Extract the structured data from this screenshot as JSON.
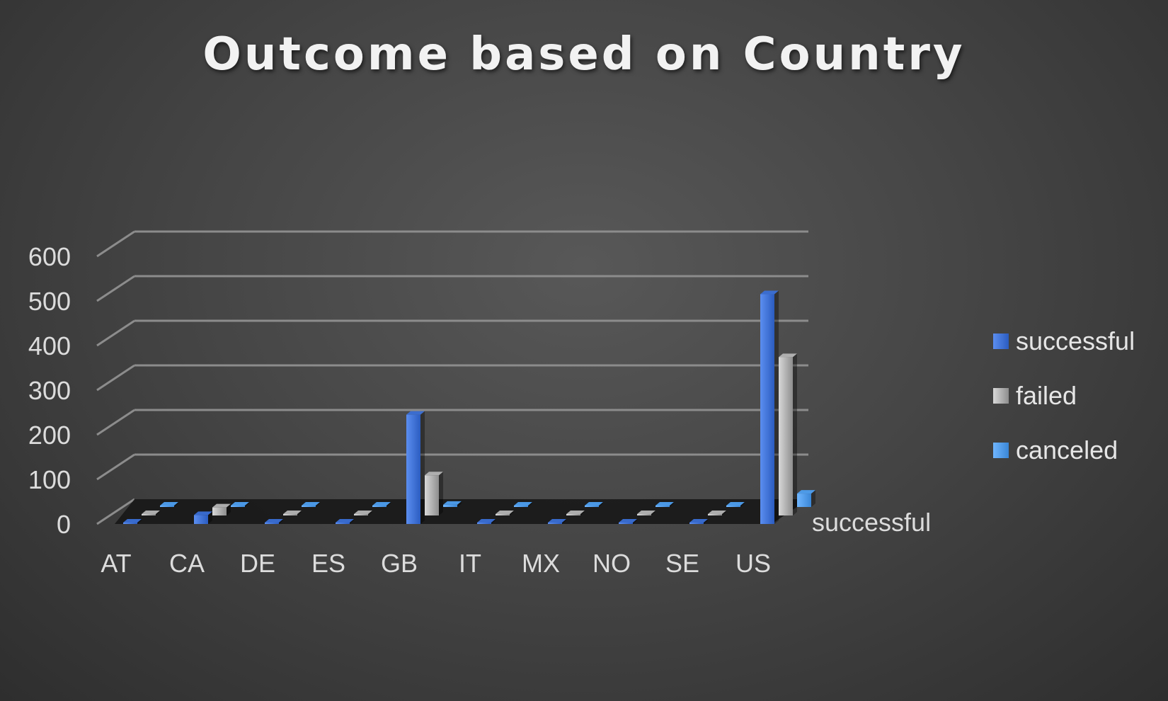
{
  "chart_data": {
    "type": "bar",
    "title": "Outcome based on Country",
    "categories": [
      "AT",
      "CA",
      "DE",
      "ES",
      "GB",
      "IT",
      "MX",
      "NO",
      "SE",
      "US"
    ],
    "series": [
      {
        "name": "successful",
        "values": [
          0,
          20,
          0,
          0,
          245,
          0,
          0,
          0,
          0,
          515
        ]
      },
      {
        "name": "failed",
        "values": [
          0,
          18,
          0,
          0,
          90,
          0,
          0,
          0,
          0,
          355
        ]
      },
      {
        "name": "canceled",
        "values": [
          0,
          0,
          0,
          0,
          5,
          0,
          0,
          0,
          0,
          30
        ]
      }
    ],
    "depth_axis_label": "successful",
    "ylim": [
      0,
      600
    ],
    "yticks": [
      0,
      100,
      200,
      300,
      400,
      500,
      600
    ],
    "grid": true,
    "legend_position": "right",
    "colors": {
      "successful": "#3a6fd6",
      "failed": "#b4b4b4",
      "canceled": "#4e9ff0",
      "floor": "#151515",
      "grid": "#8c8c8c"
    }
  }
}
